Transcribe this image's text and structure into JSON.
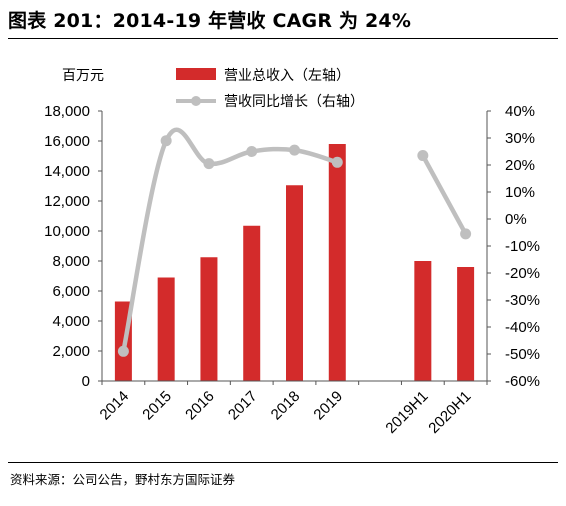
{
  "header": {
    "title": "图表 201：2014-19 年营收 CAGR 为 24%"
  },
  "footer": {
    "source": "资料来源：公司公告，野村东方国际证券"
  },
  "chart_data": {
    "type": "bar",
    "categories": [
      "2014",
      "2015",
      "2016",
      "2017",
      "2018",
      "2019",
      "",
      "2019H1",
      "2020H1"
    ],
    "left_axis": {
      "unit_label": "百万元",
      "ylim": [
        0,
        18000
      ],
      "tick_values": [
        0,
        2000,
        4000,
        6000,
        8000,
        10000,
        12000,
        14000,
        16000,
        18000
      ],
      "tick_labels": [
        "0",
        "2,000",
        "4,000",
        "6,000",
        "8,000",
        "10,000",
        "12,000",
        "14,000",
        "16,000",
        "18,000"
      ]
    },
    "right_axis": {
      "ylim": [
        -60,
        40
      ],
      "tick_values": [
        -60,
        -50,
        -40,
        -30,
        -20,
        -10,
        0,
        10,
        20,
        30,
        40
      ],
      "tick_labels": [
        "-60%",
        "-50%",
        "-40%",
        "-30%",
        "-20%",
        "-10%",
        "0%",
        "10%",
        "20%",
        "30%",
        "40%"
      ]
    },
    "series": [
      {
        "name": "营业总收入（左轴）",
        "kind": "bar",
        "axis": "left",
        "color": "#d32b2b",
        "values": [
          5300,
          6900,
          8250,
          10350,
          13050,
          15800,
          null,
          8000,
          7600
        ]
      },
      {
        "name": "营收同比增长（右轴）",
        "kind": "line",
        "axis": "right",
        "color": "#bfbfbf",
        "values": [
          -49,
          29,
          20.5,
          25,
          25.5,
          21,
          null,
          23.5,
          -5.5
        ]
      }
    ],
    "legend_position": "top",
    "grid": false
  }
}
